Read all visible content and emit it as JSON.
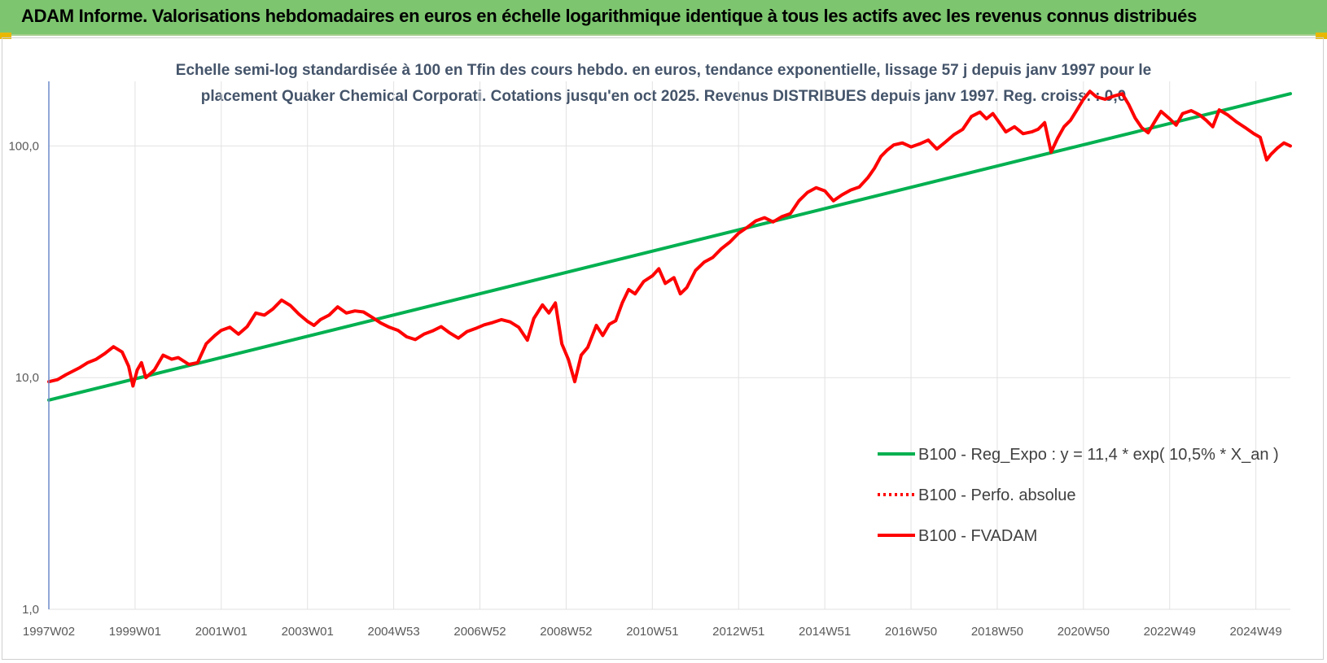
{
  "banner": {
    "title": "ADAM Informe. Valorisations hebdomadaires en euros en échelle logarithmique identique à tous les actifs avec les revenus connus distribués",
    "color": "#7dc66f"
  },
  "chart_data": {
    "type": "line",
    "title_lines": [
      "Echelle semi-log standardisée à 100 en Tfin des cours hebdo. en euros, tendance exponentielle, lissage 57 j depuis janv 1997 pour le",
      "placement Quaker Chemical Corporati. Cotations jusqu'en oct 2025. Revenus DISTRIBUES depuis janv 1997. Reg. croiss. : 0,0"
    ],
    "xlabel": "",
    "ylabel": "",
    "y_scale": "log",
    "ylim": [
      1,
      190
    ],
    "y_ticks": [
      {
        "value": 1,
        "label": "1,0"
      },
      {
        "value": 10,
        "label": "10,0"
      },
      {
        "value": 100,
        "label": "100,0"
      }
    ],
    "x_range": [
      1997.0,
      2025.8
    ],
    "x_ticks": [
      {
        "value": 1997.0,
        "label": "1997W02"
      },
      {
        "value": 1999.0,
        "label": "1999W01"
      },
      {
        "value": 2001.0,
        "label": "2001W01"
      },
      {
        "value": 2003.0,
        "label": "2003W01"
      },
      {
        "value": 2005.0,
        "label": "2004W53"
      },
      {
        "value": 2007.0,
        "label": "2006W52"
      },
      {
        "value": 2009.0,
        "label": "2008W52"
      },
      {
        "value": 2011.0,
        "label": "2010W51"
      },
      {
        "value": 2013.0,
        "label": "2012W51"
      },
      {
        "value": 2015.0,
        "label": "2014W51"
      },
      {
        "value": 2017.0,
        "label": "2016W50"
      },
      {
        "value": 2019.0,
        "label": "2018W50"
      },
      {
        "value": 2021.0,
        "label": "2020W50"
      },
      {
        "value": 2023.0,
        "label": "2022W49"
      },
      {
        "value": 2025.0,
        "label": "2024W49"
      }
    ],
    "grid": true,
    "legend_position": "bottom-right",
    "series": [
      {
        "name": "B100 - Reg_Expo : y = 11,4 * exp( 10,5% *  X_an )",
        "color": "#00b050",
        "style": "solid",
        "points": [
          [
            1997.0,
            8.0
          ],
          [
            2025.8,
            168.0
          ]
        ]
      },
      {
        "name": "B100 - Perfo. absolue",
        "color": "#ff0000",
        "style": "dotted",
        "points": []
      },
      {
        "name": "B100 - FVADAM",
        "color": "#ff0000",
        "style": "solid",
        "points": [
          [
            1997.0,
            9.6
          ],
          [
            1997.2,
            9.8
          ],
          [
            1997.4,
            10.3
          ],
          [
            1997.7,
            11.0
          ],
          [
            1997.9,
            11.6
          ],
          [
            1998.1,
            12.0
          ],
          [
            1998.3,
            12.7
          ],
          [
            1998.5,
            13.6
          ],
          [
            1998.7,
            12.9
          ],
          [
            1998.85,
            11.2
          ],
          [
            1998.95,
            9.2
          ],
          [
            1999.05,
            10.8
          ],
          [
            1999.15,
            11.6
          ],
          [
            1999.25,
            10.0
          ],
          [
            1999.45,
            10.8
          ],
          [
            1999.65,
            12.5
          ],
          [
            1999.85,
            12.0
          ],
          [
            2000.0,
            12.2
          ],
          [
            2000.25,
            11.4
          ],
          [
            2000.45,
            11.6
          ],
          [
            2000.65,
            14.0
          ],
          [
            2000.85,
            15.2
          ],
          [
            2001.0,
            16.0
          ],
          [
            2001.2,
            16.5
          ],
          [
            2001.4,
            15.4
          ],
          [
            2001.6,
            16.6
          ],
          [
            2001.8,
            19.0
          ],
          [
            2002.0,
            18.6
          ],
          [
            2002.2,
            19.8
          ],
          [
            2002.4,
            21.6
          ],
          [
            2002.6,
            20.5
          ],
          [
            2002.8,
            18.8
          ],
          [
            2003.0,
            17.5
          ],
          [
            2003.15,
            16.8
          ],
          [
            2003.3,
            17.8
          ],
          [
            2003.5,
            18.6
          ],
          [
            2003.7,
            20.2
          ],
          [
            2003.9,
            19.0
          ],
          [
            2004.1,
            19.4
          ],
          [
            2004.3,
            19.2
          ],
          [
            2004.5,
            18.2
          ],
          [
            2004.7,
            17.2
          ],
          [
            2004.9,
            16.5
          ],
          [
            2005.1,
            16.0
          ],
          [
            2005.3,
            15.0
          ],
          [
            2005.5,
            14.6
          ],
          [
            2005.7,
            15.4
          ],
          [
            2005.9,
            15.9
          ],
          [
            2006.1,
            16.6
          ],
          [
            2006.3,
            15.6
          ],
          [
            2006.5,
            14.8
          ],
          [
            2006.7,
            15.8
          ],
          [
            2006.9,
            16.3
          ],
          [
            2007.1,
            16.9
          ],
          [
            2007.3,
            17.3
          ],
          [
            2007.5,
            17.8
          ],
          [
            2007.7,
            17.4
          ],
          [
            2007.9,
            16.5
          ],
          [
            2008.1,
            14.5
          ],
          [
            2008.25,
            18.0
          ],
          [
            2008.45,
            20.6
          ],
          [
            2008.6,
            19.0
          ],
          [
            2008.75,
            21.0
          ],
          [
            2008.9,
            14.0
          ],
          [
            2009.05,
            12.0
          ],
          [
            2009.2,
            9.6
          ],
          [
            2009.35,
            12.5
          ],
          [
            2009.5,
            13.5
          ],
          [
            2009.7,
            16.8
          ],
          [
            2009.85,
            15.2
          ],
          [
            2010.0,
            17.0
          ],
          [
            2010.15,
            17.6
          ],
          [
            2010.3,
            21.0
          ],
          [
            2010.45,
            24.0
          ],
          [
            2010.6,
            23.0
          ],
          [
            2010.8,
            26.0
          ],
          [
            2011.0,
            27.5
          ],
          [
            2011.15,
            29.5
          ],
          [
            2011.3,
            25.5
          ],
          [
            2011.5,
            27.0
          ],
          [
            2011.65,
            23.0
          ],
          [
            2011.8,
            24.5
          ],
          [
            2012.0,
            29.0
          ],
          [
            2012.2,
            31.5
          ],
          [
            2012.4,
            33.0
          ],
          [
            2012.6,
            36.0
          ],
          [
            2012.8,
            38.5
          ],
          [
            2013.0,
            42.0
          ],
          [
            2013.2,
            44.5
          ],
          [
            2013.4,
            47.5
          ],
          [
            2013.6,
            49.0
          ],
          [
            2013.8,
            47.0
          ],
          [
            2014.0,
            49.5
          ],
          [
            2014.2,
            51.0
          ],
          [
            2014.4,
            58.0
          ],
          [
            2014.6,
            63.0
          ],
          [
            2014.8,
            66.0
          ],
          [
            2015.0,
            64.0
          ],
          [
            2015.2,
            58.0
          ],
          [
            2015.4,
            61.5
          ],
          [
            2015.6,
            64.5
          ],
          [
            2015.8,
            66.5
          ],
          [
            2016.0,
            73.0
          ],
          [
            2016.15,
            80.0
          ],
          [
            2016.3,
            90.0
          ],
          [
            2016.45,
            96.0
          ],
          [
            2016.6,
            101.0
          ],
          [
            2016.8,
            103.0
          ],
          [
            2017.0,
            99.0
          ],
          [
            2017.2,
            102.0
          ],
          [
            2017.4,
            106.0
          ],
          [
            2017.6,
            97.0
          ],
          [
            2017.8,
            104.0
          ],
          [
            2018.0,
            112.0
          ],
          [
            2018.2,
            118.0
          ],
          [
            2018.4,
            134.0
          ],
          [
            2018.6,
            140.0
          ],
          [
            2018.75,
            131.0
          ],
          [
            2018.9,
            138.0
          ],
          [
            2019.05,
            126.0
          ],
          [
            2019.2,
            115.0
          ],
          [
            2019.4,
            121.0
          ],
          [
            2019.6,
            113.0
          ],
          [
            2019.8,
            115.0
          ],
          [
            2019.95,
            118.0
          ],
          [
            2020.1,
            126.0
          ],
          [
            2020.25,
            94.0
          ],
          [
            2020.4,
            108.0
          ],
          [
            2020.55,
            121.0
          ],
          [
            2020.7,
            129.0
          ],
          [
            2020.85,
            143.0
          ],
          [
            2021.0,
            159.0
          ],
          [
            2021.15,
            172.0
          ],
          [
            2021.3,
            163.0
          ],
          [
            2021.5,
            159.0
          ],
          [
            2021.7,
            164.0
          ],
          [
            2021.9,
            168.0
          ],
          [
            2022.05,
            151.0
          ],
          [
            2022.2,
            132.0
          ],
          [
            2022.35,
            120.0
          ],
          [
            2022.5,
            114.0
          ],
          [
            2022.65,
            127.0
          ],
          [
            2022.8,
            141.0
          ],
          [
            2023.0,
            131.0
          ],
          [
            2023.15,
            123.0
          ],
          [
            2023.3,
            138.0
          ],
          [
            2023.5,
            142.0
          ],
          [
            2023.7,
            136.0
          ],
          [
            2023.85,
            129.0
          ],
          [
            2024.0,
            121.0
          ],
          [
            2024.15,
            143.0
          ],
          [
            2024.35,
            136.0
          ],
          [
            2024.55,
            127.0
          ],
          [
            2024.75,
            120.0
          ],
          [
            2024.95,
            113.0
          ],
          [
            2025.1,
            109.0
          ],
          [
            2025.25,
            87.0
          ],
          [
            2025.35,
            92.0
          ],
          [
            2025.5,
            98.0
          ],
          [
            2025.65,
            103.0
          ],
          [
            2025.8,
            100.0
          ]
        ]
      }
    ]
  }
}
